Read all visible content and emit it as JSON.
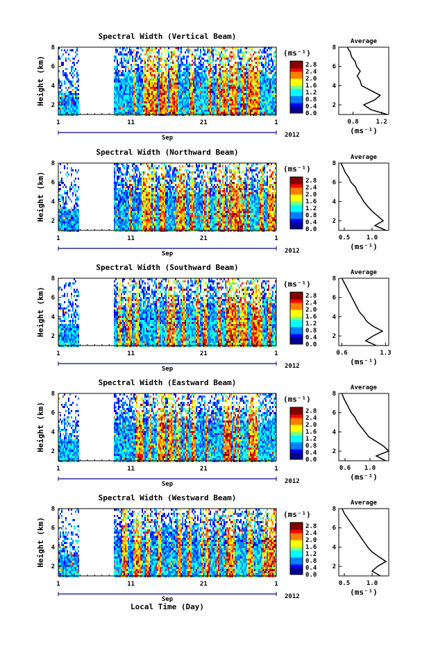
{
  "figure": {
    "xlabel": "Local Time (Day)",
    "month_label": "Sep",
    "year_label": "2012",
    "x_ticks": [
      "1",
      "11",
      "21",
      "1"
    ],
    "y_label": "Height (km)",
    "y_ticks": [
      "2",
      "4",
      "6",
      "8"
    ],
    "colorbar_unit": "(ms⁻¹)",
    "avg_title": "Average",
    "avg_unit": "(ms⁻¹)",
    "colors": {
      "colormap": [
        "#00008f",
        "#0000ff",
        "#0080ff",
        "#00ffff",
        "#80ff80",
        "#ffff00",
        "#ff8000",
        "#ff0000",
        "#800000"
      ],
      "blank": "#ffffff",
      "axis": "#000000"
    }
  },
  "chart_data": [
    {
      "type": "heatmap",
      "title": "Spectral Width (Vertical Beam)",
      "x_range_days": [
        1,
        31
      ],
      "no_data_days": [
        3.7,
        8.5
      ],
      "ylim": [
        1,
        8
      ],
      "colorbar_ticks": [
        "0.0",
        "0.4",
        "0.8",
        "1.2",
        "1.6",
        "2.0",
        "2.4",
        "2.8"
      ],
      "colorbar_range": [
        0,
        3.0
      ],
      "average_profile": {
        "x_ticks": [
          "0.8",
          "1.2"
        ],
        "xlim": [
          0.6,
          1.3
        ],
        "height_km": [
          1,
          1.5,
          2,
          2.5,
          3,
          3.5,
          4,
          4.5,
          5,
          5.5,
          6,
          6.5,
          7,
          7.5,
          8
        ],
        "value": [
          1.28,
          1.05,
          0.95,
          1.1,
          1.18,
          1.05,
          0.92,
          0.9,
          0.86,
          0.9,
          0.85,
          0.83,
          0.78,
          0.76,
          0.72
        ]
      }
    },
    {
      "type": "heatmap",
      "title": "Spectral Width (Northward Beam)",
      "x_range_days": [
        1,
        31
      ],
      "no_data_days": [
        3.7,
        8.5
      ],
      "ylim": [
        1,
        8
      ],
      "colorbar_ticks": [
        "0.0",
        "0.4",
        "0.8",
        "1.2",
        "1.6",
        "2.0",
        "2.4",
        "2.8"
      ],
      "colorbar_range": [
        0,
        3.0
      ],
      "average_profile": {
        "x_ticks": [
          "0.5",
          "1.0"
        ],
        "xlim": [
          0.4,
          1.3
        ],
        "height_km": [
          1,
          1.5,
          2,
          2.5,
          3,
          3.5,
          4,
          4.5,
          5,
          5.5,
          6,
          6.5,
          7,
          7.5,
          8
        ],
        "value": [
          1.25,
          1.05,
          1.2,
          1.1,
          1.0,
          0.92,
          0.85,
          0.8,
          0.74,
          0.7,
          0.62,
          0.58,
          0.52,
          0.48,
          0.44
        ]
      }
    },
    {
      "type": "heatmap",
      "title": "Spectral Width (Southward Beam)",
      "x_range_days": [
        1,
        31
      ],
      "no_data_days": [
        3.7,
        8.5
      ],
      "ylim": [
        1,
        8
      ],
      "colorbar_ticks": [
        "0.0",
        "0.4",
        "0.8",
        "1.2",
        "1.6",
        "2.0",
        "2.4",
        "2.8"
      ],
      "colorbar_range": [
        0,
        3.0
      ],
      "average_profile": {
        "x_ticks": [
          "0.6",
          "1.3"
        ],
        "xlim": [
          0.55,
          1.35
        ],
        "height_km": [
          1,
          1.5,
          2,
          2.5,
          3,
          3.5,
          4,
          4.5,
          5,
          5.5,
          6,
          6.5,
          7,
          7.5,
          8
        ],
        "value": [
          1.15,
          0.98,
          1.1,
          1.25,
          1.1,
          1.0,
          0.95,
          0.88,
          0.84,
          0.8,
          0.76,
          0.72,
          0.68,
          0.64,
          0.6
        ]
      }
    },
    {
      "type": "heatmap",
      "title": "Spectral Width (Eastward Beam)",
      "x_range_days": [
        1,
        31
      ],
      "no_data_days": [
        3.7,
        8.5
      ],
      "ylim": [
        1,
        8
      ],
      "colorbar_ticks": [
        "0.0",
        "0.4",
        "0.8",
        "1.2",
        "1.6",
        "2.0",
        "2.4",
        "2.8"
      ],
      "colorbar_range": [
        0,
        3.0
      ],
      "average_profile": {
        "x_ticks": [
          "0.6",
          "1.0"
        ],
        "xlim": [
          0.5,
          1.3
        ],
        "height_km": [
          1,
          1.5,
          2,
          2.5,
          3,
          3.5,
          4,
          4.5,
          5,
          5.5,
          6,
          6.5,
          7,
          7.5,
          8
        ],
        "value": [
          1.25,
          1.1,
          1.3,
          1.22,
          1.1,
          0.98,
          0.92,
          0.86,
          0.8,
          0.76,
          0.7,
          0.66,
          0.62,
          0.58,
          0.55
        ]
      }
    },
    {
      "type": "heatmap",
      "title": "Spectral Width (Westward Beam)",
      "x_range_days": [
        1,
        31
      ],
      "no_data_days": [
        3.7,
        8.5
      ],
      "ylim": [
        1,
        8
      ],
      "colorbar_ticks": [
        "0.0",
        "0.4",
        "0.8",
        "1.2",
        "1.6",
        "2.0",
        "2.4",
        "2.8"
      ],
      "colorbar_range": [
        0,
        3.0
      ],
      "average_profile": {
        "x_ticks": [
          "0.5",
          "1.0"
        ],
        "xlim": [
          0.4,
          1.3
        ],
        "height_km": [
          1,
          1.5,
          2,
          2.5,
          3,
          3.5,
          4,
          4.5,
          5,
          5.5,
          6,
          6.5,
          7,
          7.5,
          8
        ],
        "value": [
          1.15,
          1.0,
          1.1,
          1.25,
          1.12,
          1.0,
          0.92,
          0.86,
          0.8,
          0.74,
          0.68,
          0.62,
          0.56,
          0.5,
          0.46
        ]
      }
    }
  ]
}
